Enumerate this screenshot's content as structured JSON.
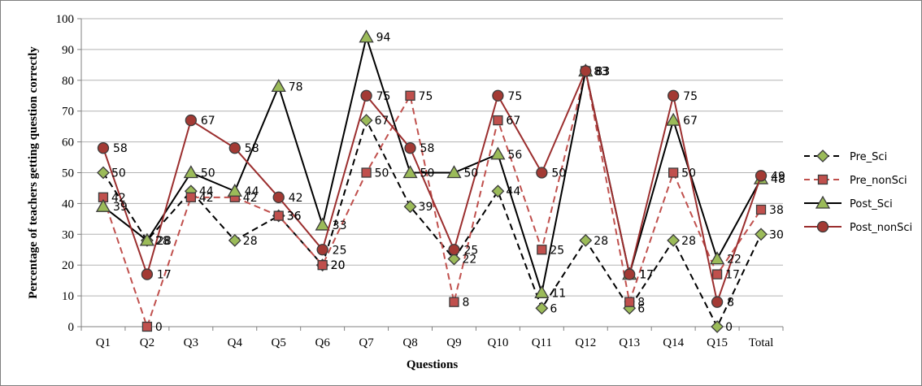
{
  "chart_data": {
    "type": "line",
    "title": "",
    "xlabel": "Questions",
    "ylabel": "Percentage of teachers getting question correctly",
    "ylim": [
      0,
      100
    ],
    "ytick_step": 10,
    "grid": "horizontal",
    "legend_position": "right",
    "categories": [
      "Q1",
      "Q2",
      "Q3",
      "Q4",
      "Q5",
      "Q6",
      "Q7",
      "Q8",
      "Q9",
      "Q10",
      "Q11",
      "Q12",
      "Q13",
      "Q14",
      "Q15",
      "Total"
    ],
    "series": [
      {
        "name": "Pre_Sci",
        "values": [
          50,
          28,
          44,
          28,
          36,
          20,
          67,
          39,
          22,
          44,
          6,
          28,
          6,
          28,
          0,
          30
        ],
        "color": "#000000",
        "dashed": true,
        "marker": "diamond",
        "marker_fill": "#9bbb59",
        "label_offset": [
          10,
          5
        ]
      },
      {
        "name": "Pre_nonSci",
        "values": [
          42,
          0,
          42,
          42,
          36,
          20,
          50,
          75,
          8,
          67,
          25,
          83,
          8,
          50,
          17,
          38
        ],
        "color": "#c0504d",
        "dashed": true,
        "marker": "square",
        "marker_fill": "#c0504d",
        "label_offset": [
          10,
          5
        ]
      },
      {
        "name": "Post_Sci",
        "values": [
          39,
          28,
          50,
          44,
          78,
          33,
          94,
          50,
          50,
          56,
          11,
          83,
          17,
          67,
          22,
          48
        ],
        "color": "#000000",
        "dashed": false,
        "marker": "triangle",
        "marker_fill": "#9bbb59",
        "label_offset": [
          12,
          5
        ]
      },
      {
        "name": "Post_nonSci",
        "values": [
          58,
          17,
          67,
          58,
          42,
          25,
          75,
          58,
          25,
          75,
          50,
          83,
          17,
          75,
          8,
          49
        ],
        "color": "#9b2e2e",
        "dashed": false,
        "marker": "circle",
        "marker_fill": "#a33a34",
        "label_offset": [
          12,
          5
        ]
      }
    ]
  }
}
